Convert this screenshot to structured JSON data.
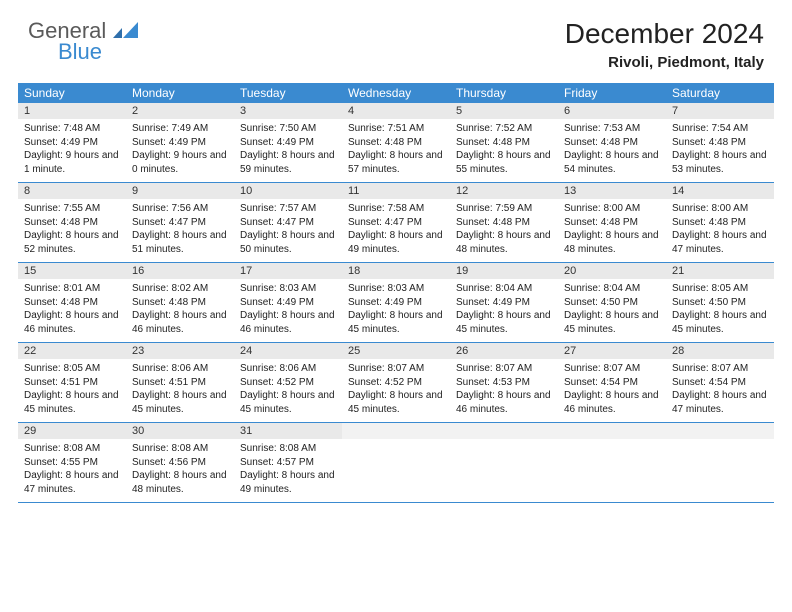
{
  "logo": {
    "text1": "General",
    "text2": "Blue"
  },
  "title": "December 2024",
  "location": "Rivoli, Piedmont, Italy",
  "colors": {
    "header_bg": "#3a8ad0",
    "daynum_bg": "#e9e9e9",
    "border": "#3a8ad0",
    "logo_gray": "#5a5a5a",
    "logo_blue": "#3a8ad0"
  },
  "weekdays": [
    "Sunday",
    "Monday",
    "Tuesday",
    "Wednesday",
    "Thursday",
    "Friday",
    "Saturday"
  ],
  "weeks": [
    [
      {
        "n": "1",
        "sr": "7:48 AM",
        "ss": "4:49 PM",
        "dl": "9 hours and 1 minute."
      },
      {
        "n": "2",
        "sr": "7:49 AM",
        "ss": "4:49 PM",
        "dl": "9 hours and 0 minutes."
      },
      {
        "n": "3",
        "sr": "7:50 AM",
        "ss": "4:49 PM",
        "dl": "8 hours and 59 minutes."
      },
      {
        "n": "4",
        "sr": "7:51 AM",
        "ss": "4:48 PM",
        "dl": "8 hours and 57 minutes."
      },
      {
        "n": "5",
        "sr": "7:52 AM",
        "ss": "4:48 PM",
        "dl": "8 hours and 55 minutes."
      },
      {
        "n": "6",
        "sr": "7:53 AM",
        "ss": "4:48 PM",
        "dl": "8 hours and 54 minutes."
      },
      {
        "n": "7",
        "sr": "7:54 AM",
        "ss": "4:48 PM",
        "dl": "8 hours and 53 minutes."
      }
    ],
    [
      {
        "n": "8",
        "sr": "7:55 AM",
        "ss": "4:48 PM",
        "dl": "8 hours and 52 minutes."
      },
      {
        "n": "9",
        "sr": "7:56 AM",
        "ss": "4:47 PM",
        "dl": "8 hours and 51 minutes."
      },
      {
        "n": "10",
        "sr": "7:57 AM",
        "ss": "4:47 PM",
        "dl": "8 hours and 50 minutes."
      },
      {
        "n": "11",
        "sr": "7:58 AM",
        "ss": "4:47 PM",
        "dl": "8 hours and 49 minutes."
      },
      {
        "n": "12",
        "sr": "7:59 AM",
        "ss": "4:48 PM",
        "dl": "8 hours and 48 minutes."
      },
      {
        "n": "13",
        "sr": "8:00 AM",
        "ss": "4:48 PM",
        "dl": "8 hours and 48 minutes."
      },
      {
        "n": "14",
        "sr": "8:00 AM",
        "ss": "4:48 PM",
        "dl": "8 hours and 47 minutes."
      }
    ],
    [
      {
        "n": "15",
        "sr": "8:01 AM",
        "ss": "4:48 PM",
        "dl": "8 hours and 46 minutes."
      },
      {
        "n": "16",
        "sr": "8:02 AM",
        "ss": "4:48 PM",
        "dl": "8 hours and 46 minutes."
      },
      {
        "n": "17",
        "sr": "8:03 AM",
        "ss": "4:49 PM",
        "dl": "8 hours and 46 minutes."
      },
      {
        "n": "18",
        "sr": "8:03 AM",
        "ss": "4:49 PM",
        "dl": "8 hours and 45 minutes."
      },
      {
        "n": "19",
        "sr": "8:04 AM",
        "ss": "4:49 PM",
        "dl": "8 hours and 45 minutes."
      },
      {
        "n": "20",
        "sr": "8:04 AM",
        "ss": "4:50 PM",
        "dl": "8 hours and 45 minutes."
      },
      {
        "n": "21",
        "sr": "8:05 AM",
        "ss": "4:50 PM",
        "dl": "8 hours and 45 minutes."
      }
    ],
    [
      {
        "n": "22",
        "sr": "8:05 AM",
        "ss": "4:51 PM",
        "dl": "8 hours and 45 minutes."
      },
      {
        "n": "23",
        "sr": "8:06 AM",
        "ss": "4:51 PM",
        "dl": "8 hours and 45 minutes."
      },
      {
        "n": "24",
        "sr": "8:06 AM",
        "ss": "4:52 PM",
        "dl": "8 hours and 45 minutes."
      },
      {
        "n": "25",
        "sr": "8:07 AM",
        "ss": "4:52 PM",
        "dl": "8 hours and 45 minutes."
      },
      {
        "n": "26",
        "sr": "8:07 AM",
        "ss": "4:53 PM",
        "dl": "8 hours and 46 minutes."
      },
      {
        "n": "27",
        "sr": "8:07 AM",
        "ss": "4:54 PM",
        "dl": "8 hours and 46 minutes."
      },
      {
        "n": "28",
        "sr": "8:07 AM",
        "ss": "4:54 PM",
        "dl": "8 hours and 47 minutes."
      }
    ],
    [
      {
        "n": "29",
        "sr": "8:08 AM",
        "ss": "4:55 PM",
        "dl": "8 hours and 47 minutes."
      },
      {
        "n": "30",
        "sr": "8:08 AM",
        "ss": "4:56 PM",
        "dl": "8 hours and 48 minutes."
      },
      {
        "n": "31",
        "sr": "8:08 AM",
        "ss": "4:57 PM",
        "dl": "8 hours and 49 minutes."
      },
      null,
      null,
      null,
      null
    ]
  ],
  "labels": {
    "sunrise": "Sunrise:",
    "sunset": "Sunset:",
    "daylight": "Daylight:"
  }
}
